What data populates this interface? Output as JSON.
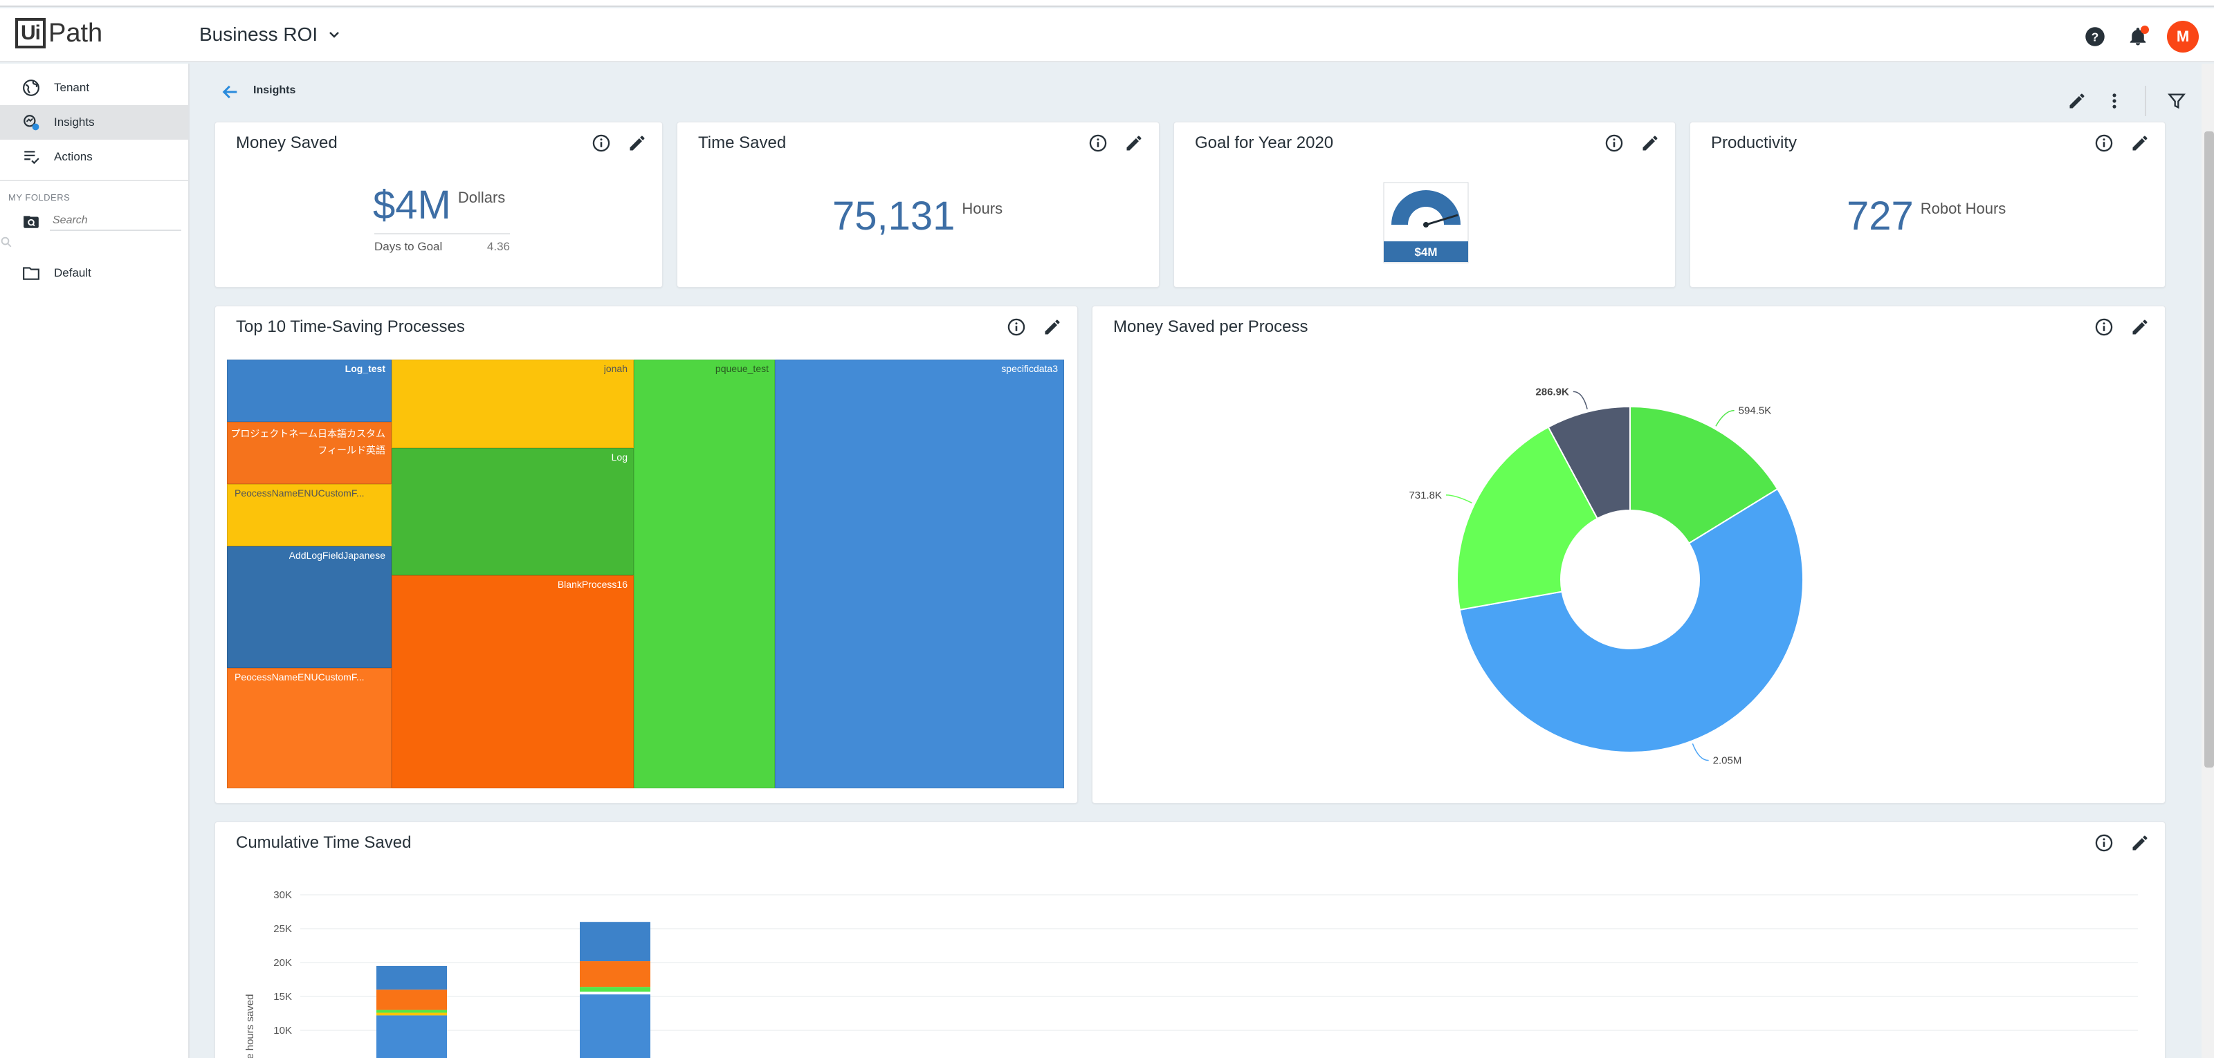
{
  "header": {
    "logo_left": "Ui",
    "logo_right": "Path",
    "app_title": "Business ROI",
    "avatar_initial": "M"
  },
  "sidebar": {
    "items": [
      {
        "label": "Tenant",
        "icon": "globe-icon"
      },
      {
        "label": "Insights",
        "icon": "insights-icon",
        "active": true
      },
      {
        "label": "Actions",
        "icon": "actions-list-icon"
      }
    ],
    "folders_title": "MY FOLDERS",
    "search_placeholder": "Search",
    "folders": [
      {
        "label": "Default",
        "icon": "folder-icon"
      }
    ]
  },
  "subheader": {
    "breadcrumb": "Insights"
  },
  "cards": {
    "money_saved": {
      "title": "Money Saved",
      "value": "$4M",
      "unit": "Dollars",
      "sub_label": "Days to Goal",
      "sub_value": "4.36"
    },
    "time_saved": {
      "title": "Time Saved",
      "value": "75,131",
      "unit": "Hours"
    },
    "goal": {
      "title": "Goal for Year 2020",
      "gauge_label": "$4M",
      "gauge_fill": 0.85
    },
    "productivity": {
      "title": "Productivity",
      "value": "727",
      "unit": "Robot Hours"
    },
    "top10": {
      "title": "Top 10 Time-Saving Processes"
    },
    "money_per_process": {
      "title": "Money Saved per Process"
    },
    "cumulative": {
      "title": "Cumulative Time Saved"
    }
  },
  "chart_data": [
    {
      "type": "treemap",
      "title": "Top 10 Time-Saving Processes",
      "items": [
        {
          "name": "Log_test",
          "color": "#3d82c9"
        },
        {
          "name": "プロジェクトネーム日本語カスタムフィールド英語",
          "color": "#f5731c"
        },
        {
          "name": "PeocessNameENUCustomF...",
          "color": "#fcc30a"
        },
        {
          "name": "AddLogFieldJapanese",
          "color": "#3470ab"
        },
        {
          "name": "PeocessNameENUCustomF...",
          "color": "#fc781f"
        },
        {
          "name": "jonah",
          "color": "#fcc30a"
        },
        {
          "name": "Log",
          "color": "#45b836"
        },
        {
          "name": "BlankProcess16",
          "color": "#f96608"
        },
        {
          "name": "pqueue_test",
          "color": "#4fd641"
        },
        {
          "name": "specificdata3",
          "color": "#438bd6"
        }
      ]
    },
    {
      "type": "pie",
      "title": "Money Saved per Process",
      "slices": [
        {
          "label": "594.5K",
          "value": 594.5,
          "color": "#52e64a"
        },
        {
          "label": "2.05M",
          "value": 2050,
          "color": "#4aa3f5"
        },
        {
          "label": "731.8K",
          "value": 731.8,
          "color": "#66ff55"
        },
        {
          "label": "286.9K",
          "value": 286.9,
          "color": "#505a70"
        }
      ]
    },
    {
      "type": "bar",
      "title": "Cumulative Time Saved",
      "ylabel": "Cumulative hours saved",
      "yticks": [
        "30K",
        "25K",
        "20K",
        "15K",
        "10K"
      ],
      "ylim": [
        0,
        30000
      ],
      "bars": [
        {
          "segments": [
            {
              "value": 3500,
              "color": "#3d82c9"
            },
            {
              "value": 3000,
              "color": "#f97316"
            },
            {
              "value": 400,
              "color": "#52e64a"
            },
            {
              "value": 400,
              "color": "#fcc30a"
            },
            {
              "value": 12200,
              "color": "#438bd6"
            }
          ]
        },
        {
          "segments": [
            {
              "value": 5800,
              "color": "#3d82c9"
            },
            {
              "value": 3800,
              "color": "#f97316"
            },
            {
              "value": 700,
              "color": "#52e64a"
            },
            {
              "value": 400,
              "color": "#ffffff"
            },
            {
              "value": 15300,
              "color": "#438bd6"
            }
          ]
        }
      ]
    }
  ]
}
